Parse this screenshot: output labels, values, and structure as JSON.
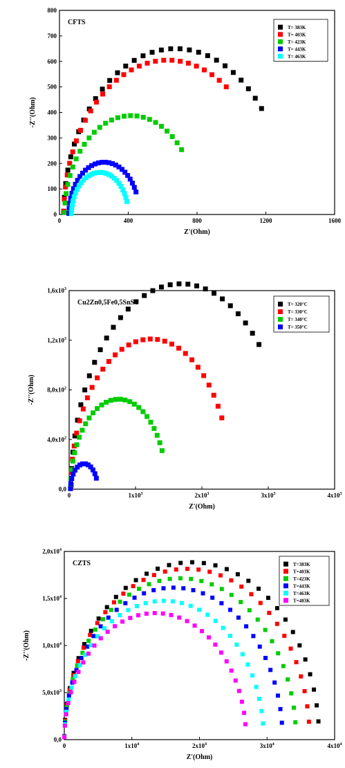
{
  "chart_data": [
    {
      "type": "scatter",
      "title": "CFTS",
      "xlabel": "Z'(Ohm)",
      "ylabel": "-Z''(Ohm)",
      "xlim": [
        0,
        1600
      ],
      "ylim": [
        0,
        800
      ],
      "x_ticks": [
        {
          "v": 0,
          "label": "0"
        },
        {
          "v": 400,
          "label": "400"
        },
        {
          "v": 800,
          "label": "800"
        },
        {
          "v": 1200,
          "label": "1200"
        },
        {
          "v": 1600,
          "label": "1600"
        }
      ],
      "y_ticks": [
        {
          "v": 0,
          "label": "0"
        },
        {
          "v": 100,
          "label": "100"
        },
        {
          "v": 200,
          "label": "200"
        },
        {
          "v": 300,
          "label": "300"
        },
        {
          "v": 400,
          "label": "400"
        },
        {
          "v": 500,
          "label": "500"
        },
        {
          "v": 600,
          "label": "600"
        },
        {
          "v": 700,
          "label": "700"
        },
        {
          "v": 800,
          "label": "800"
        }
      ],
      "legend": "top-right",
      "series": [
        {
          "name": "T= 383K",
          "color": "#000000",
          "rs": 25,
          "rp": 1300,
          "end_x": 1175,
          "n": 30
        },
        {
          "name": "T= 403K",
          "color": "#ff0000",
          "rs": 25,
          "rp": 1210,
          "end_x": 970,
          "n": 28
        },
        {
          "name": "T= 423K",
          "color": "#00cc00",
          "rs": 30,
          "rp": 775,
          "end_x": 710,
          "n": 26
        },
        {
          "name": "T= 443K",
          "color": "#0000ff",
          "rs": 55,
          "rp": 410,
          "end_x": 445,
          "n": 28
        },
        {
          "name": "T= 463K",
          "color": "#00ffff",
          "rs": 70,
          "rp": 330,
          "end_x": 392,
          "n": 28
        }
      ]
    },
    {
      "type": "scatter",
      "title": "Cu2Zn0,5Fe0,5SnS4",
      "xlabel": "Z'(Ohm)",
      "ylabel": "-Z''(Ohm)",
      "xlim": [
        0,
        4000
      ],
      "ylim": [
        0,
        1600
      ],
      "x_ticks": [
        {
          "v": 0,
          "label": "0"
        },
        {
          "v": 1000,
          "label": "1x10",
          "exp": "3"
        },
        {
          "v": 2000,
          "label": "2x10",
          "exp": "3"
        },
        {
          "v": 3000,
          "label": "3x10",
          "exp": "3"
        },
        {
          "v": 4000,
          "label": "4x10",
          "exp": "3"
        }
      ],
      "y_ticks": [
        {
          "v": 0,
          "label": "0,0"
        },
        {
          "v": 400,
          "label": "4,0x10",
          "exp": "2"
        },
        {
          "v": 800,
          "label": "8,0x10",
          "exp": "2"
        },
        {
          "v": 1200,
          "label": "1,2x10",
          "exp": "3"
        },
        {
          "v": 1600,
          "label": "1,6x10",
          "exp": "3"
        }
      ],
      "legend": "top-right",
      "series": [
        {
          "name": "T= 320°C",
          "color": "#000000",
          "rs": 30,
          "rp": 3310,
          "end_x": 2860,
          "n": 30
        },
        {
          "name": "T= 330°C",
          "color": "#ff0000",
          "rs": 25,
          "rp": 2420,
          "end_x": 2300,
          "n": 30
        },
        {
          "name": "T= 340°C",
          "color": "#00cc00",
          "rs": 20,
          "rp": 1450,
          "end_x": 1400,
          "n": 28
        },
        {
          "name": "T= 350°C",
          "color": "#0000ff",
          "rs": 20,
          "rp": 410,
          "end_x": 410,
          "n": 14
        }
      ]
    },
    {
      "type": "scatter",
      "title": "CZTS",
      "xlabel": "Z'(Ohm)",
      "ylabel": "-Z''(Ohm)",
      "xlim": [
        0,
        40000
      ],
      "ylim": [
        0,
        20000
      ],
      "x_ticks": [
        {
          "v": 0,
          "label": "0"
        },
        {
          "v": 10000,
          "label": "1x10",
          "exp": "4"
        },
        {
          "v": 20000,
          "label": "2x10",
          "exp": "4"
        },
        {
          "v": 30000,
          "label": "3x10",
          "exp": "4"
        },
        {
          "v": 40000,
          "label": "4x10",
          "exp": "4"
        }
      ],
      "y_ticks": [
        {
          "v": 0,
          "label": "0,0"
        },
        {
          "v": 5000,
          "label": "5,0x10",
          "exp": "3"
        },
        {
          "v": 10000,
          "label": "1,0x10",
          "exp": "4"
        },
        {
          "v": 15000,
          "label": "1,5x10",
          "exp": "4"
        },
        {
          "v": 20000,
          "label": "2,0x10",
          "exp": "4"
        }
      ],
      "legend": "top-right",
      "series": [
        {
          "name": "T=383K",
          "color": "#000000",
          "rs": 0,
          "rp": 37700,
          "end_x": 37600,
          "n": 34
        },
        {
          "name": "T=403K",
          "color": "#ff0000",
          "rs": 0,
          "rp": 36300,
          "end_x": 36200,
          "n": 34
        },
        {
          "name": "T=423K",
          "color": "#00cc00",
          "rs": 0,
          "rp": 34300,
          "end_x": 34200,
          "n": 34
        },
        {
          "name": "T=443K",
          "color": "#0000ff",
          "rs": 0,
          "rp": 32300,
          "end_x": 32200,
          "n": 34
        },
        {
          "name": "T=463K",
          "color": "#00ffff",
          "rs": 0,
          "rp": 29500,
          "end_x": 29400,
          "n": 34
        },
        {
          "name": "T=483K",
          "color": "#ff00ff",
          "rs": 0,
          "rp": 26900,
          "end_x": 26800,
          "n": 34
        }
      ]
    }
  ]
}
